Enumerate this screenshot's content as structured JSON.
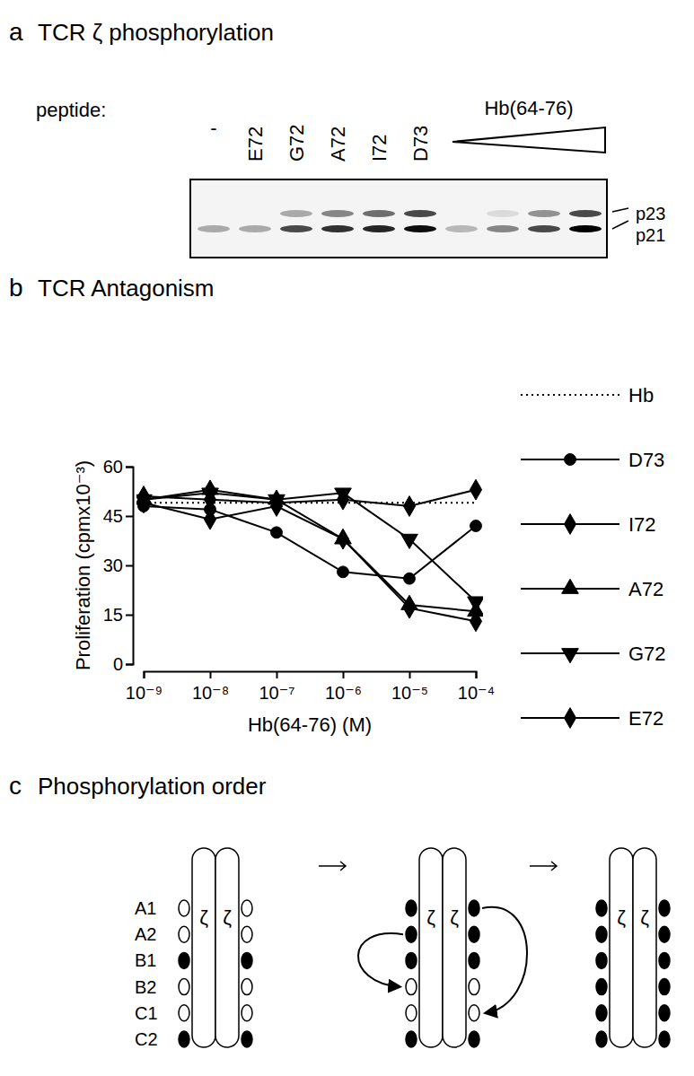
{
  "panel_a": {
    "label": "a",
    "title": "TCR ζ phosphorylation",
    "peptide_label": "peptide:",
    "band_labels": [
      "p23",
      "p21"
    ],
    "peptide_lanes": [
      {
        "label": "-",
        "bands": [
          0,
          0.3
        ]
      },
      {
        "label": "E72",
        "bands": [
          0,
          0.3
        ]
      },
      {
        "label": "G72",
        "bands": [
          0.3,
          0.7
        ]
      },
      {
        "label": "A72",
        "bands": [
          0.45,
          0.8
        ]
      },
      {
        "label": "I72",
        "bands": [
          0.55,
          0.85
        ]
      },
      {
        "label": "D73",
        "bands": [
          0.7,
          0.95
        ]
      }
    ],
    "titration": {
      "label": "Hb(64-76)",
      "lanes": [
        [
          0,
          0.25
        ],
        [
          0.1,
          0.45
        ],
        [
          0.4,
          0.7
        ],
        [
          0.7,
          1.0
        ]
      ]
    }
  },
  "chart_data": {
    "type": "line",
    "label": "b",
    "title": "TCR Antagonism",
    "x_label": "Hb(64-76) (M)",
    "y_label": "Proliferation (cpmx10⁻³)",
    "log": "x",
    "legend": "right",
    "x": [
      1e-09,
      1e-08,
      1e-07,
      1e-06,
      1e-05,
      0.0001
    ],
    "xlim": [
      1e-09,
      0.0001
    ],
    "xticks": [
      {
        "value": 1e-09,
        "label": "10⁻⁹"
      },
      {
        "value": 1e-08,
        "label": "10⁻⁸"
      },
      {
        "value": 1e-07,
        "label": "10⁻⁷"
      },
      {
        "value": 1e-06,
        "label": "10⁻⁶"
      },
      {
        "value": 1e-05,
        "label": "10⁻⁵"
      },
      {
        "value": 0.0001,
        "label": "10⁻⁴"
      }
    ],
    "ylim": [
      0,
      60
    ],
    "yticks": [
      0,
      15,
      30,
      45,
      60
    ],
    "series": [
      {
        "name": "Hb",
        "color": "#000000",
        "marker": "none",
        "line_style": "dotted",
        "values": [
          49,
          49,
          49,
          49,
          49,
          49
        ]
      },
      {
        "name": "D73",
        "color": "#000000",
        "marker": "circle",
        "line_style": "solid",
        "values": [
          48,
          47,
          40,
          28,
          26,
          42
        ]
      },
      {
        "name": "I72",
        "color": "#000000",
        "marker": "diamond",
        "line_style": "solid",
        "values": [
          49,
          44,
          48,
          38,
          17,
          13
        ]
      },
      {
        "name": "A72",
        "color": "#000000",
        "marker": "triangle-up",
        "line_style": "solid",
        "values": [
          50,
          53,
          50,
          38,
          18,
          16
        ]
      },
      {
        "name": "G72",
        "color": "#000000",
        "marker": "triangle-down",
        "line_style": "solid",
        "values": [
          50,
          52,
          50,
          52,
          38,
          19
        ]
      },
      {
        "name": "E72",
        "color": "#000000",
        "marker": "diamond",
        "line_style": "solid",
        "values": [
          51,
          50,
          49,
          50,
          48,
          53
        ]
      }
    ]
  },
  "panel_c": {
    "label": "c",
    "title": "Phosphorylation order",
    "chain": "ζ",
    "sites": [
      "A1",
      "A2",
      "B1",
      "B2",
      "C1",
      "C2"
    ],
    "states": [
      [
        false,
        false,
        true,
        false,
        false,
        true
      ],
      [
        true,
        true,
        true,
        false,
        false,
        true
      ],
      [
        true,
        true,
        true,
        true,
        true,
        true
      ]
    ]
  }
}
